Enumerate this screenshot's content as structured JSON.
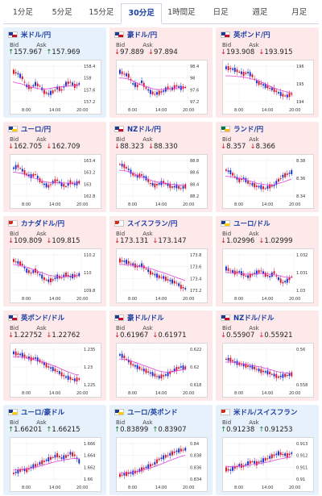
{
  "tabs": [
    "1分足",
    "5分足",
    "15分足",
    "30分足",
    "1時間足",
    "日足",
    "週足",
    "月足"
  ],
  "active_tab": 3,
  "labels": {
    "bid": "Bid",
    "ask": "Ask"
  },
  "cards": [
    {
      "pair": "米ドル/円",
      "bg": "blue",
      "dir": "up",
      "bid": "157.967",
      "ask": "157.969",
      "flag": [
        "#1f3b8f",
        "#c8102e"
      ],
      "yticks": [
        "158.4",
        "158",
        "157.6",
        "157.2"
      ],
      "xticks": [
        "8:00",
        "14:00",
        "20:00"
      ],
      "trend": [
        0.2,
        0.25,
        0.35,
        0.55,
        0.6,
        0.5,
        0.55,
        0.7,
        0.75,
        0.7,
        0.6,
        0.65,
        0.5,
        0.45,
        0.55,
        0.5
      ],
      "ma": [
        0.45,
        0.48,
        0.5,
        0.55,
        0.58,
        0.6,
        0.62,
        0.63,
        0.62,
        0.6,
        0.58,
        0.57,
        0.56,
        0.55,
        0.55,
        0.54
      ]
    },
    {
      "pair": "豪ドル/円",
      "bg": "pink",
      "dir": "down",
      "bid": "97.889",
      "ask": "97.894",
      "flag": [
        "#1f3b8f",
        "#c8102e"
      ],
      "yticks": [
        "98.4",
        "98",
        "97.6",
        "97.2"
      ],
      "xticks": [
        "8:00",
        "14:00",
        "20:00"
      ],
      "trend": [
        0.2,
        0.25,
        0.3,
        0.5,
        0.55,
        0.45,
        0.6,
        0.7,
        0.75,
        0.72,
        0.68,
        0.6,
        0.62,
        0.55,
        0.6,
        0.58
      ],
      "ma": [
        0.35,
        0.36,
        0.38,
        0.42,
        0.48,
        0.52,
        0.56,
        0.6,
        0.63,
        0.64,
        0.64,
        0.63,
        0.62,
        0.6,
        0.6,
        0.59
      ]
    },
    {
      "pair": "英ポンド/円",
      "bg": "pink",
      "dir": "down",
      "bid": "193.908",
      "ask": "193.915",
      "flag": [
        "#1f3b8f",
        "#c8102e"
      ],
      "yticks": [
        "196",
        "195",
        "194"
      ],
      "xticks": [
        "8:00",
        "14:00",
        "20:00"
      ],
      "trend": [
        0.1,
        0.12,
        0.15,
        0.2,
        0.25,
        0.22,
        0.3,
        0.45,
        0.5,
        0.55,
        0.6,
        0.65,
        0.72,
        0.78,
        0.8,
        0.75
      ],
      "ma": [
        0.3,
        0.3,
        0.31,
        0.32,
        0.33,
        0.35,
        0.38,
        0.4,
        0.45,
        0.5,
        0.55,
        0.6,
        0.64,
        0.67,
        0.7,
        0.72
      ]
    },
    {
      "pair": "ユーロ/円",
      "bg": "pink",
      "dir": "down",
      "bid": "162.705",
      "ask": "162.709",
      "flag": [
        "#1f3b8f",
        "#ffcc00"
      ],
      "yticks": [
        "163.4",
        "163.2",
        "163",
        "162.8"
      ],
      "xticks": [
        "8:00",
        "14:00",
        "20:00"
      ],
      "trend": [
        0.25,
        0.2,
        0.3,
        0.4,
        0.45,
        0.4,
        0.55,
        0.65,
        0.7,
        0.6,
        0.55,
        0.65,
        0.7,
        0.6,
        0.65,
        0.6
      ],
      "ma": [
        0.35,
        0.36,
        0.38,
        0.42,
        0.47,
        0.5,
        0.54,
        0.58,
        0.6,
        0.61,
        0.61,
        0.62,
        0.62,
        0.62,
        0.62,
        0.61
      ]
    },
    {
      "pair": "NZドル/円",
      "bg": "pink",
      "dir": "down",
      "bid": "88.323",
      "ask": "88.330",
      "flag": [
        "#1f3b8f",
        "#c8102e"
      ],
      "yticks": [
        "88.8",
        "88.6",
        "88.4",
        "88.2"
      ],
      "xticks": [
        "8:00",
        "14:00",
        "20:00"
      ],
      "trend": [
        0.15,
        0.2,
        0.28,
        0.4,
        0.45,
        0.42,
        0.5,
        0.62,
        0.68,
        0.64,
        0.6,
        0.66,
        0.72,
        0.7,
        0.75,
        0.7
      ],
      "ma": [
        0.3,
        0.31,
        0.33,
        0.37,
        0.42,
        0.46,
        0.5,
        0.54,
        0.58,
        0.6,
        0.62,
        0.63,
        0.65,
        0.66,
        0.67,
        0.68
      ]
    },
    {
      "pair": "ランド/円",
      "bg": "pink",
      "dir": "down",
      "bid": "8.357",
      "ask": "8.366",
      "flag": [
        "#007a4d",
        "#ffb612"
      ],
      "yticks": [
        "8.38",
        "8.36",
        "8.34"
      ],
      "xticks": [
        "8:00",
        "14:00",
        "20:00"
      ],
      "trend": [
        0.3,
        0.35,
        0.45,
        0.55,
        0.5,
        0.6,
        0.65,
        0.7,
        0.72,
        0.75,
        0.7,
        0.68,
        0.55,
        0.45,
        0.4,
        0.35
      ],
      "ma": [
        0.45,
        0.46,
        0.48,
        0.5,
        0.52,
        0.55,
        0.58,
        0.62,
        0.64,
        0.66,
        0.67,
        0.66,
        0.63,
        0.6,
        0.56,
        0.52
      ]
    },
    {
      "pair": "カナダドル/円",
      "bg": "pink",
      "dir": "down",
      "bid": "109.809",
      "ask": "109.815",
      "flag": [
        "#d52b1e",
        "#ffffff"
      ],
      "yticks": [
        "110.2",
        "110",
        "109.8"
      ],
      "xticks": [
        "8:00",
        "14:00",
        "20:00"
      ],
      "trend": [
        0.2,
        0.25,
        0.3,
        0.45,
        0.5,
        0.45,
        0.55,
        0.65,
        0.7,
        0.68,
        0.6,
        0.62,
        0.55,
        0.6,
        0.58,
        0.55
      ],
      "ma": [
        0.3,
        0.31,
        0.33,
        0.36,
        0.4,
        0.44,
        0.48,
        0.52,
        0.56,
        0.58,
        0.6,
        0.6,
        0.6,
        0.59,
        0.58,
        0.58
      ]
    },
    {
      "pair": "スイスフラン/円",
      "bg": "pink",
      "dir": "down",
      "bid": "173.131",
      "ask": "173.147",
      "flag": [
        "#d52b1e",
        "#ffffff"
      ],
      "yticks": [
        "173.8",
        "173.6",
        "173.4",
        "173.2"
      ],
      "xticks": [
        "8:00",
        "14:00",
        "20:00"
      ],
      "trend": [
        0.2,
        0.22,
        0.25,
        0.3,
        0.35,
        0.32,
        0.4,
        0.5,
        0.55,
        0.6,
        0.62,
        0.68,
        0.72,
        0.75,
        0.85,
        0.9
      ],
      "ma": [
        0.3,
        0.3,
        0.31,
        0.32,
        0.33,
        0.35,
        0.37,
        0.4,
        0.43,
        0.47,
        0.5,
        0.54,
        0.58,
        0.62,
        0.66,
        0.7
      ]
    },
    {
      "pair": "ユーロ/ドル",
      "bg": "pink",
      "dir": "down",
      "bid": "1.02996",
      "ask": "1.02999",
      "flag": [
        "#1f3b8f",
        "#ffcc00"
      ],
      "yticks": [
        "1.032",
        "1.031",
        "1.03"
      ],
      "xticks": [
        "8:00",
        "14:00",
        "20:00"
      ],
      "trend": [
        0.4,
        0.45,
        0.5,
        0.48,
        0.55,
        0.6,
        0.55,
        0.5,
        0.45,
        0.55,
        0.6,
        0.5,
        0.65,
        0.75,
        0.7,
        0.6
      ],
      "ma": [
        0.5,
        0.5,
        0.51,
        0.52,
        0.53,
        0.54,
        0.54,
        0.53,
        0.52,
        0.53,
        0.54,
        0.55,
        0.57,
        0.6,
        0.62,
        0.62
      ]
    },
    {
      "pair": "英ポンド/ドル",
      "bg": "pink",
      "dir": "down",
      "bid": "1.22752",
      "ask": "1.22762",
      "flag": [
        "#1f3b8f",
        "#c8102e"
      ],
      "yticks": [
        "1.235",
        "1.23",
        "1.225"
      ],
      "xticks": [
        "8:00",
        "14:00",
        "20:00"
      ],
      "trend": [
        0.15,
        0.18,
        0.2,
        0.25,
        0.3,
        0.28,
        0.35,
        0.42,
        0.5,
        0.55,
        0.6,
        0.68,
        0.75,
        0.78,
        0.82,
        0.8
      ],
      "ma": [
        0.25,
        0.25,
        0.26,
        0.28,
        0.3,
        0.32,
        0.35,
        0.38,
        0.42,
        0.46,
        0.5,
        0.55,
        0.6,
        0.64,
        0.68,
        0.7
      ]
    },
    {
      "pair": "豪ドル/ドル",
      "bg": "pink",
      "dir": "down",
      "bid": "0.61967",
      "ask": "0.61971",
      "flag": [
        "#1f3b8f",
        "#c8102e"
      ],
      "yticks": [
        "0.622",
        "0.62",
        "0.618"
      ],
      "xticks": [
        "8:00",
        "14:00",
        "20:00"
      ],
      "trend": [
        0.2,
        0.25,
        0.35,
        0.45,
        0.5,
        0.55,
        0.6,
        0.65,
        0.7,
        0.75,
        0.72,
        0.68,
        0.6,
        0.55,
        0.5,
        0.52
      ],
      "ma": [
        0.3,
        0.31,
        0.33,
        0.36,
        0.4,
        0.44,
        0.48,
        0.52,
        0.56,
        0.6,
        0.62,
        0.63,
        0.62,
        0.6,
        0.58,
        0.56
      ]
    },
    {
      "pair": "NZドル/ドル",
      "bg": "pink",
      "dir": "down",
      "bid": "0.55907",
      "ask": "0.55921",
      "flag": [
        "#1f3b8f",
        "#c8102e"
      ],
      "yticks": [
        "0.56",
        "0.558"
      ],
      "xticks": [
        "8:00",
        "14:00",
        "20:00"
      ],
      "trend": [
        0.3,
        0.32,
        0.38,
        0.42,
        0.45,
        0.48,
        0.5,
        0.55,
        0.6,
        0.62,
        0.65,
        0.7,
        0.75,
        0.72,
        0.7,
        0.68
      ],
      "ma": [
        0.38,
        0.38,
        0.39,
        0.4,
        0.42,
        0.44,
        0.46,
        0.48,
        0.5,
        0.53,
        0.56,
        0.59,
        0.62,
        0.64,
        0.65,
        0.66
      ]
    },
    {
      "pair": "ユーロ/豪ドル",
      "bg": "blue",
      "dir": "up",
      "bid": "1.66201",
      "ask": "1.66215",
      "flag": [
        "#1f3b8f",
        "#ffcc00"
      ],
      "yticks": [
        "1.666",
        "1.664",
        "1.662",
        "1.66"
      ],
      "xticks": [
        "8:00",
        "14:00",
        "20:00"
      ],
      "trend": [
        0.8,
        0.75,
        0.7,
        0.72,
        0.65,
        0.6,
        0.55,
        0.5,
        0.45,
        0.4,
        0.35,
        0.42,
        0.38,
        0.3,
        0.35,
        0.5
      ],
      "ma": [
        0.72,
        0.71,
        0.7,
        0.69,
        0.67,
        0.65,
        0.62,
        0.59,
        0.56,
        0.53,
        0.5,
        0.48,
        0.46,
        0.44,
        0.43,
        0.44
      ]
    },
    {
      "pair": "ユーロ/英ポンド",
      "bg": "blue",
      "dir": "up",
      "bid": "0.83899",
      "ask": "0.83907",
      "flag": [
        "#1f3b8f",
        "#ffcc00"
      ],
      "yticks": [
        "0.84",
        "0.838",
        "0.836",
        "0.834"
      ],
      "xticks": [
        "8:00",
        "14:00",
        "20:00"
      ],
      "trend": [
        0.85,
        0.82,
        0.8,
        0.78,
        0.75,
        0.7,
        0.65,
        0.6,
        0.55,
        0.45,
        0.4,
        0.35,
        0.3,
        0.25,
        0.22,
        0.2
      ],
      "ma": [
        0.8,
        0.79,
        0.78,
        0.77,
        0.75,
        0.73,
        0.7,
        0.67,
        0.63,
        0.59,
        0.55,
        0.5,
        0.46,
        0.42,
        0.38,
        0.35
      ]
    },
    {
      "pair": "米ドル/スイスフラン",
      "bg": "blue",
      "dir": "up",
      "bid": "0.91238",
      "ask": "0.91253",
      "flag": [
        "#d52b1e",
        "#ffffff"
      ],
      "yticks": [
        "0.913",
        "0.912",
        "0.911",
        "0.91"
      ],
      "xticks": [
        "8:00",
        "14:00",
        "20:00"
      ],
      "trend": [
        0.7,
        0.72,
        0.65,
        0.6,
        0.62,
        0.55,
        0.5,
        0.55,
        0.5,
        0.45,
        0.4,
        0.35,
        0.3,
        0.32,
        0.35,
        0.3
      ],
      "ma": [
        0.62,
        0.63,
        0.63,
        0.62,
        0.61,
        0.6,
        0.58,
        0.57,
        0.55,
        0.53,
        0.51,
        0.48,
        0.45,
        0.43,
        0.41,
        0.39
      ]
    }
  ]
}
